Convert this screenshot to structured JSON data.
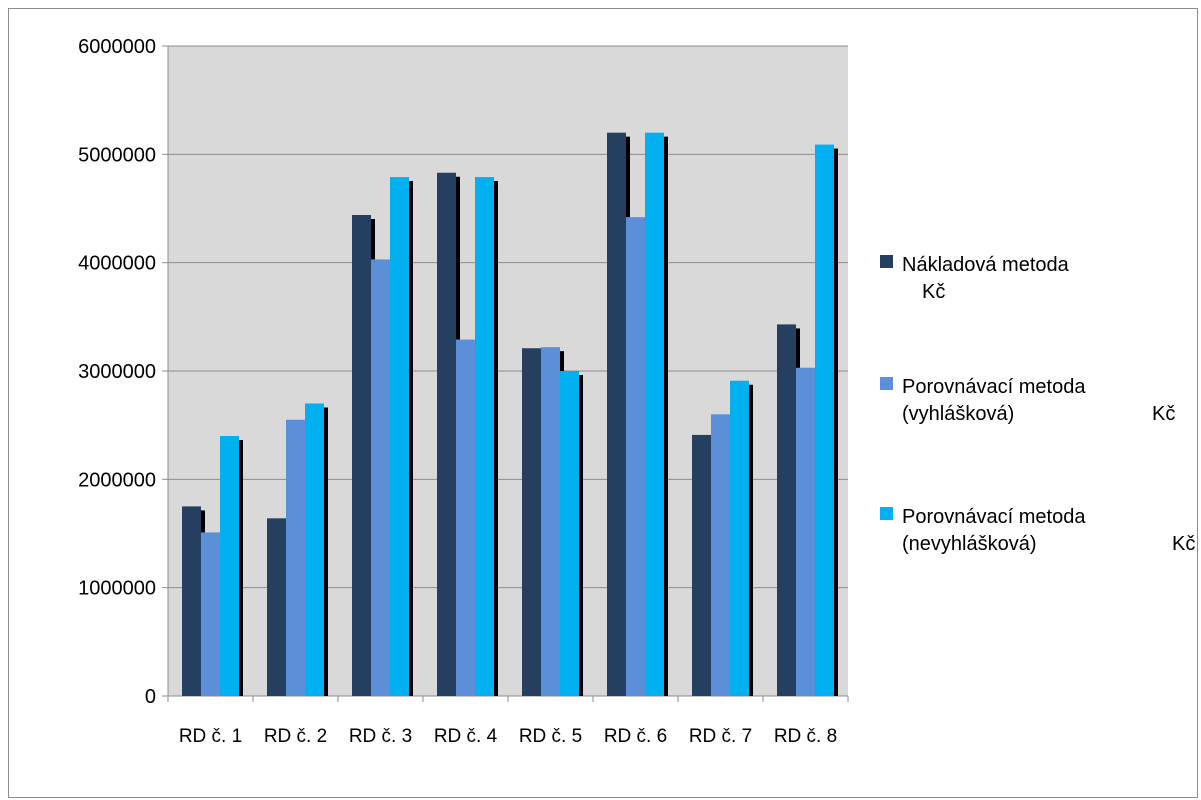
{
  "chart_data": {
    "type": "bar",
    "title": "",
    "xlabel": "",
    "ylabel": "",
    "ylim": [
      0,
      6000000
    ],
    "yticks": [
      0,
      1000000,
      2000000,
      3000000,
      4000000,
      5000000,
      6000000
    ],
    "grid": true,
    "legend_position": "right",
    "categories": [
      "RD č. 1",
      "RD č. 2",
      "RD č. 3",
      "RD č. 4",
      "RD č. 5",
      "RD č. 6",
      "RD č. 7",
      "RD č. 8"
    ],
    "series": [
      {
        "name": "Nákladová metoda Kč",
        "legend_lines": [
          "Nákladová metoda",
          "Kč"
        ],
        "color": "#243f60",
        "values": [
          1750000,
          1640000,
          4440000,
          4830000,
          3210000,
          5200000,
          2410000,
          3430000
        ]
      },
      {
        "name": "Porovnávací metoda (vyhlášková) Kč",
        "legend_lines": [
          "Porovnávací metoda",
          "(vyhlášková)",
          "Kč"
        ],
        "color": "#5b8fd8",
        "values": [
          1510000,
          2550000,
          4030000,
          3290000,
          3220000,
          4420000,
          2600000,
          3030000
        ]
      },
      {
        "name": "Porovnávací metoda (nevyhlášková) Kč",
        "legend_lines": [
          "Porovnávací metoda",
          "(nevyhlášková)",
          "Kč"
        ],
        "color": "#00b0f0",
        "values": [
          2400000,
          2700000,
          4790000,
          4790000,
          3000000,
          5200000,
          2910000,
          5090000
        ]
      }
    ],
    "colors": {
      "plot_background": "#d9d9d9",
      "gridline": "#8c8c8c",
      "shadow": "#000000"
    }
  }
}
